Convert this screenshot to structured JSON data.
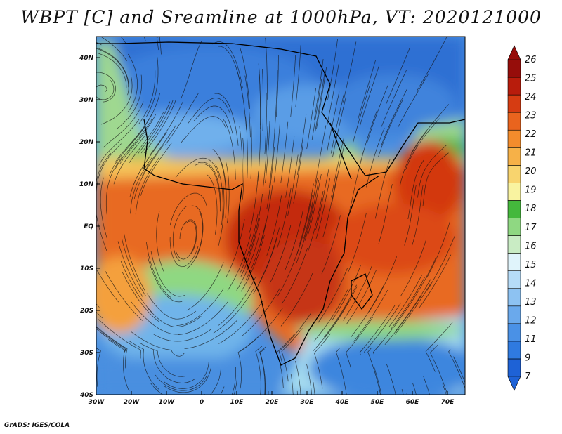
{
  "title": "WBPT [C] and Sreamline at 1000hPa, VT: 2020121000",
  "credit": "GrADS: IGES/COLA",
  "map": {
    "lon_range": [
      -30,
      75
    ],
    "lat_range": [
      -40,
      45
    ],
    "lon_ticks": [
      {
        "value": -30,
        "label": "30W"
      },
      {
        "value": -20,
        "label": "20W"
      },
      {
        "value": -10,
        "label": "10W"
      },
      {
        "value": 0,
        "label": "0"
      },
      {
        "value": 10,
        "label": "10E"
      },
      {
        "value": 20,
        "label": "20E"
      },
      {
        "value": 30,
        "label": "30E"
      },
      {
        "value": 40,
        "label": "40E"
      },
      {
        "value": 50,
        "label": "50E"
      },
      {
        "value": 60,
        "label": "60E"
      },
      {
        "value": 70,
        "label": "70E"
      }
    ],
    "lat_ticks": [
      {
        "value": 40,
        "label": "40N"
      },
      {
        "value": 30,
        "label": "30N"
      },
      {
        "value": 20,
        "label": "20N"
      },
      {
        "value": 10,
        "label": "10N"
      },
      {
        "value": 0,
        "label": "EQ"
      },
      {
        "value": -10,
        "label": "10S"
      },
      {
        "value": -20,
        "label": "20S"
      },
      {
        "value": -30,
        "label": "30S"
      },
      {
        "value": -40,
        "label": "40S"
      }
    ]
  },
  "colorbar": {
    "labels": [
      "7",
      "9",
      "11",
      "12",
      "13",
      "14",
      "15",
      "16",
      "17",
      "18",
      "19",
      "20",
      "21",
      "22",
      "23",
      "24",
      "25",
      "26"
    ],
    "colors": [
      "#1e62d6",
      "#2f7ae0",
      "#4a91e6",
      "#6aa9ec",
      "#8dc2f2",
      "#b6dcf8",
      "#e0f4fb",
      "#c9ecc4",
      "#8fd882",
      "#44b83c",
      "#f9f3a0",
      "#f8d46e",
      "#f6b148",
      "#f38c2c",
      "#e9641e",
      "#d63c12",
      "#b81c0c",
      "#960d0a"
    ]
  }
}
